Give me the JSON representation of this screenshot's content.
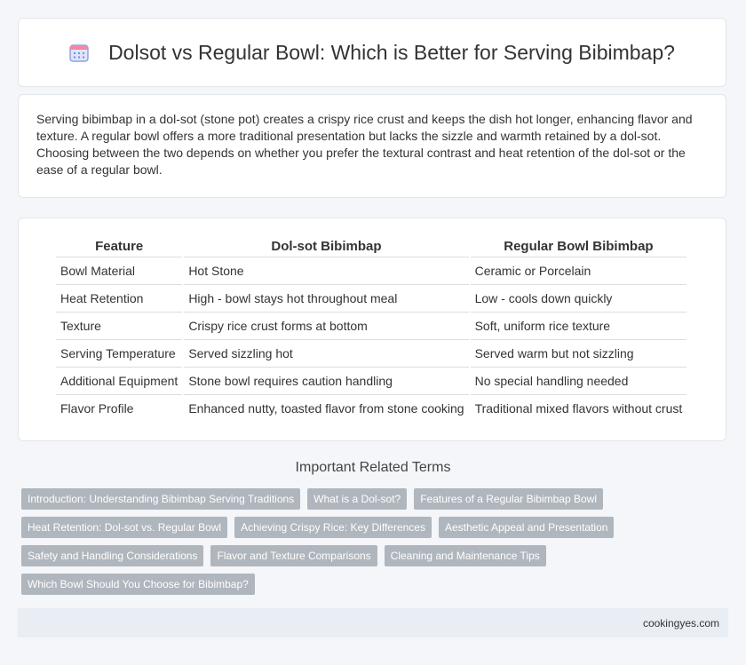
{
  "title": "Dolsot vs Regular Bowl: Which is Better for Serving Bibimbap?",
  "title_icon": "calendar-icon",
  "intro": "Serving bibimbap in a dol-sot (stone pot) creates a crispy rice crust and keeps the dish hot longer, enhancing flavor and texture. A regular bowl offers a more traditional presentation but lacks the sizzle and warmth retained by a dol-sot. Choosing between the two depends on whether you prefer the textural contrast and heat retention of the dol-sot or the ease of a regular bowl.",
  "table": {
    "headers": [
      "Feature",
      "Dol-sot Bibimbap",
      "Regular Bowl Bibimbap"
    ],
    "rows": [
      [
        "Bowl Material",
        "Hot Stone",
        "Ceramic or Porcelain"
      ],
      [
        "Heat Retention",
        "High - bowl stays hot throughout meal",
        "Low - cools down quickly"
      ],
      [
        "Texture",
        "Crispy rice crust forms at bottom",
        "Soft, uniform rice texture"
      ],
      [
        "Serving Temperature",
        "Served sizzling hot",
        "Served warm but not sizzling"
      ],
      [
        "Additional Equipment",
        "Stone bowl requires caution handling",
        "No special handling needed"
      ],
      [
        "Flavor Profile",
        "Enhanced nutty, toasted flavor from stone cooking",
        "Traditional mixed flavors without crust"
      ]
    ]
  },
  "related_heading": "Important Related Terms",
  "related_terms": [
    "Introduction: Understanding Bibimbap Serving Traditions",
    "What is a Dol-sot?",
    "Features of a Regular Bibimbap Bowl",
    "Heat Retention: Dol-sot vs. Regular Bowl",
    "Achieving Crispy Rice: Key Differences",
    "Aesthetic Appeal and Presentation",
    "Safety and Handling Considerations",
    "Flavor and Texture Comparisons",
    "Cleaning and Maintenance Tips",
    "Which Bowl Should You Choose for Bibimbap?"
  ],
  "footer": "cookingyes.com",
  "colors": {
    "accent_icon": "#7b8fe0",
    "tag_bg": "#b0b6bd",
    "footer_bg": "#e9edf4"
  }
}
